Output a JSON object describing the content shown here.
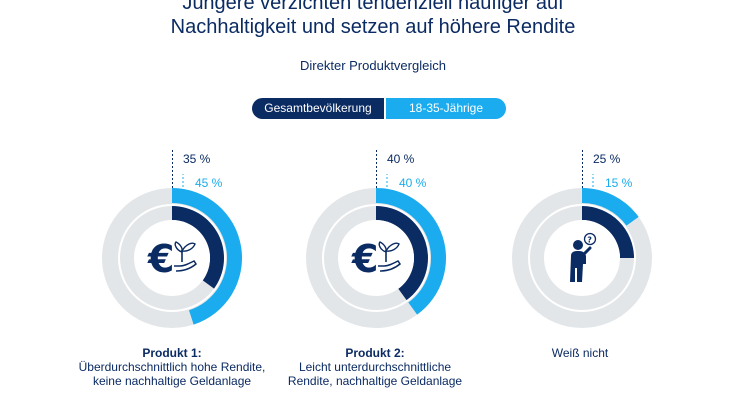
{
  "chart_data": {
    "type": "pie",
    "title": [
      "Jüngere verzichten tendenziell häufiger auf",
      "Nachhaltigkeit und setzen auf höhere Rendite"
    ],
    "subtitle": "Direkter Produktvergleich",
    "legend": [
      "Gesamtbevölkerung",
      "18-35-Jährige"
    ],
    "colors": {
      "gesamt": "#0b2b63",
      "jung": "#1aacee",
      "rest": "#e3e6e8",
      "inner": "#ffffff"
    },
    "items": [
      {
        "name": "Produkt 1:",
        "desc": [
          "Überdurchschnittlich hohe Rendite,",
          "keine nachhaltige Geldanlage"
        ],
        "gesamt": 35,
        "jung": 45,
        "gesamt_label": "35 %",
        "jung_label": "45 %",
        "icon": "euro-plant-icon"
      },
      {
        "name": "Produkt 2:",
        "desc": [
          "Leicht unterdurchschnittliche",
          "Rendite, nachhaltige Geldanlage"
        ],
        "gesamt": 40,
        "jung": 40,
        "gesamt_label": "40 %",
        "jung_label": "40 %",
        "icon": "euro-plant-hand-icon"
      },
      {
        "name": "",
        "desc": [
          "Weiß nicht"
        ],
        "gesamt": 25,
        "jung": 15,
        "gesamt_label": "25 %",
        "jung_label": "15 %",
        "icon": "person-question-icon"
      }
    ]
  }
}
